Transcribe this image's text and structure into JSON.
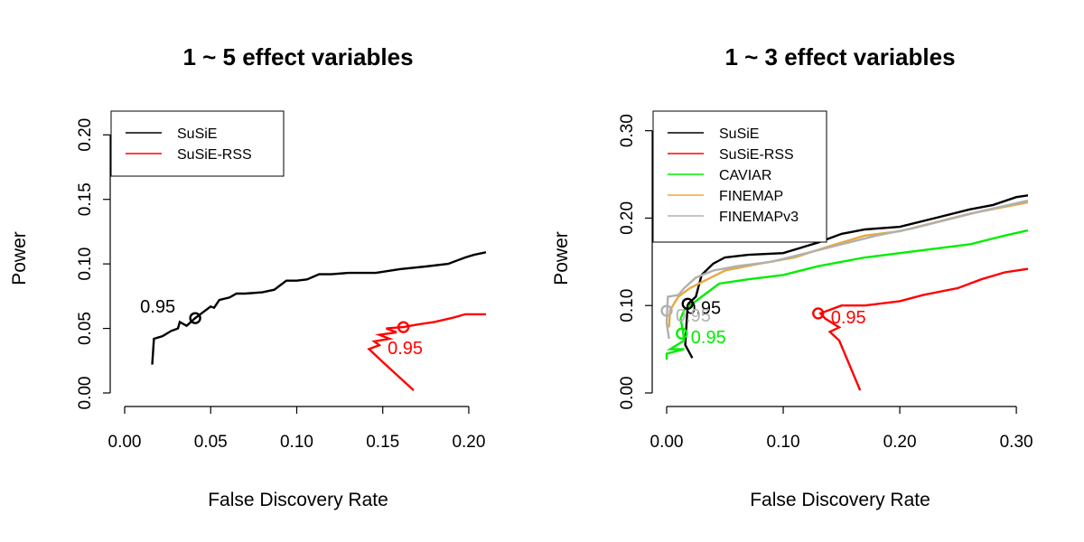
{
  "chart_data": [
    {
      "type": "line",
      "title": "1 ~ 5 effect variables",
      "xlabel": "False Discovery Rate",
      "ylabel": "Power",
      "xlim": [
        0,
        0.21
      ],
      "ylim": [
        0,
        0.21
      ],
      "xticks": [
        "0.00",
        "0.05",
        "0.10",
        "0.15",
        "0.20"
      ],
      "yticks": [
        "0.00",
        "0.05",
        "0.10",
        "0.15",
        "0.20"
      ],
      "grid": false,
      "legend_position": "top-left",
      "series": [
        {
          "name": "SuSiE",
          "color": "#000000",
          "points": [
            [
              0.016,
              0.022
            ],
            [
              0.017,
              0.042
            ],
            [
              0.022,
              0.044
            ],
            [
              0.027,
              0.048
            ],
            [
              0.031,
              0.05
            ],
            [
              0.032,
              0.055
            ],
            [
              0.036,
              0.052
            ],
            [
              0.041,
              0.058
            ],
            [
              0.043,
              0.06
            ],
            [
              0.045,
              0.062
            ],
            [
              0.05,
              0.067
            ],
            [
              0.052,
              0.066
            ],
            [
              0.055,
              0.072
            ],
            [
              0.061,
              0.074
            ],
            [
              0.065,
              0.077
            ],
            [
              0.07,
              0.077
            ],
            [
              0.08,
              0.078
            ],
            [
              0.087,
              0.08
            ],
            [
              0.094,
              0.087
            ],
            [
              0.1,
              0.087
            ],
            [
              0.106,
              0.088
            ],
            [
              0.113,
              0.092
            ],
            [
              0.12,
              0.092
            ],
            [
              0.13,
              0.093
            ],
            [
              0.146,
              0.093
            ],
            [
              0.16,
              0.096
            ],
            [
              0.175,
              0.098
            ],
            [
              0.188,
              0.1
            ],
            [
              0.198,
              0.105
            ],
            [
              0.203,
              0.107
            ],
            [
              0.21,
              0.109
            ]
          ]
        },
        {
          "name": "SuSiE-RSS",
          "color": "#ff0000",
          "points": [
            [
              0.168,
              0.002
            ],
            [
              0.15,
              0.024
            ],
            [
              0.142,
              0.034
            ],
            [
              0.148,
              0.037
            ],
            [
              0.145,
              0.04
            ],
            [
              0.154,
              0.042
            ],
            [
              0.148,
              0.045
            ],
            [
              0.158,
              0.047
            ],
            [
              0.152,
              0.05
            ],
            [
              0.162,
              0.051
            ],
            [
              0.17,
              0.053
            ],
            [
              0.18,
              0.055
            ],
            [
              0.19,
              0.058
            ],
            [
              0.198,
              0.061
            ],
            [
              0.21,
              0.061
            ]
          ]
        }
      ],
      "annotations": [
        {
          "text": "0.95",
          "x": 0.041,
          "y": 0.058,
          "color": "#000000",
          "marker": true
        },
        {
          "text": "0.95",
          "x": 0.162,
          "y": 0.051,
          "color": "#ff0000",
          "marker": true
        }
      ]
    },
    {
      "type": "line",
      "title": "1 ~ 3 effect variables",
      "xlabel": "False Discovery Rate",
      "ylabel": "Power",
      "xlim": [
        0,
        0.31
      ],
      "ylim": [
        0,
        0.31
      ],
      "xticks": [
        "0.00",
        "0.10",
        "0.20",
        "0.30"
      ],
      "yticks": [
        "0.00",
        "0.10",
        "0.20",
        "0.30"
      ],
      "grid": false,
      "legend_position": "top-left",
      "series": [
        {
          "name": "SuSiE",
          "color": "#000000",
          "points": [
            [
              0.022,
              0.04
            ],
            [
              0.016,
              0.055
            ],
            [
              0.018,
              0.1
            ],
            [
              0.02,
              0.104
            ],
            [
              0.025,
              0.11
            ],
            [
              0.03,
              0.135
            ],
            [
              0.04,
              0.148
            ],
            [
              0.05,
              0.155
            ],
            [
              0.07,
              0.158
            ],
            [
              0.1,
              0.16
            ],
            [
              0.13,
              0.172
            ],
            [
              0.15,
              0.182
            ],
            [
              0.17,
              0.187
            ],
            [
              0.2,
              0.19
            ],
            [
              0.23,
              0.2
            ],
            [
              0.26,
              0.21
            ],
            [
              0.28,
              0.215
            ],
            [
              0.3,
              0.224
            ],
            [
              0.31,
              0.226
            ]
          ]
        },
        {
          "name": "SuSiE-RSS",
          "color": "#ff0000",
          "points": [
            [
              0.166,
              0.003
            ],
            [
              0.148,
              0.06
            ],
            [
              0.14,
              0.07
            ],
            [
              0.148,
              0.075
            ],
            [
              0.136,
              0.085
            ],
            [
              0.132,
              0.091
            ],
            [
              0.15,
              0.1
            ],
            [
              0.17,
              0.1
            ],
            [
              0.2,
              0.105
            ],
            [
              0.22,
              0.112
            ],
            [
              0.25,
              0.12
            ],
            [
              0.27,
              0.13
            ],
            [
              0.29,
              0.138
            ],
            [
              0.31,
              0.142
            ]
          ]
        },
        {
          "name": "CAVIAR",
          "color": "#00ee00",
          "points": [
            [
              0.0,
              0.038
            ],
            [
              0.0,
              0.045
            ],
            [
              0.015,
              0.05
            ],
            [
              0.003,
              0.05
            ],
            [
              0.015,
              0.06
            ],
            [
              0.014,
              0.07
            ],
            [
              0.012,
              0.085
            ],
            [
              0.015,
              0.095
            ],
            [
              0.03,
              0.11
            ],
            [
              0.045,
              0.125
            ],
            [
              0.07,
              0.13
            ],
            [
              0.1,
              0.135
            ],
            [
              0.13,
              0.145
            ],
            [
              0.17,
              0.155
            ],
            [
              0.2,
              0.16
            ],
            [
              0.23,
              0.165
            ],
            [
              0.26,
              0.17
            ],
            [
              0.29,
              0.18
            ],
            [
              0.31,
              0.186
            ]
          ]
        },
        {
          "name": "FINEMAP",
          "color": "#e8a840",
          "points": [
            [
              0.002,
              0.075
            ],
            [
              0.003,
              0.095
            ],
            [
              0.01,
              0.11
            ],
            [
              0.02,
              0.12
            ],
            [
              0.035,
              0.13
            ],
            [
              0.05,
              0.14
            ],
            [
              0.08,
              0.148
            ],
            [
              0.11,
              0.155
            ],
            [
              0.14,
              0.168
            ],
            [
              0.17,
              0.18
            ],
            [
              0.2,
              0.185
            ],
            [
              0.23,
              0.195
            ],
            [
              0.26,
              0.205
            ],
            [
              0.29,
              0.213
            ],
            [
              0.31,
              0.218
            ]
          ]
        },
        {
          "name": "FINEMAPv3",
          "color": "#b0b0b0",
          "points": [
            [
              0.002,
              0.062
            ],
            [
              0.0,
              0.08
            ],
            [
              0.001,
              0.11
            ],
            [
              0.01,
              0.112
            ],
            [
              0.015,
              0.12
            ],
            [
              0.025,
              0.132
            ],
            [
              0.04,
              0.14
            ],
            [
              0.06,
              0.145
            ],
            [
              0.09,
              0.15
            ],
            [
              0.12,
              0.16
            ],
            [
              0.15,
              0.17
            ],
            [
              0.18,
              0.18
            ],
            [
              0.21,
              0.188
            ],
            [
              0.24,
              0.198
            ],
            [
              0.27,
              0.208
            ],
            [
              0.29,
              0.214
            ],
            [
              0.31,
              0.22
            ]
          ]
        }
      ],
      "annotations": [
        {
          "text": "0.95",
          "x": 0.018,
          "y": 0.102,
          "color": "#000000",
          "marker": true
        },
        {
          "text": "0.95",
          "x": 0.13,
          "y": 0.091,
          "color": "#ff0000",
          "marker": true
        },
        {
          "text": "0.95",
          "x": 0.013,
          "y": 0.068,
          "color": "#00ee00",
          "marker": true
        },
        {
          "text": "0.95",
          "x": 0.0,
          "y": 0.094,
          "color": "#b0b0b0",
          "marker": true
        }
      ]
    }
  ]
}
